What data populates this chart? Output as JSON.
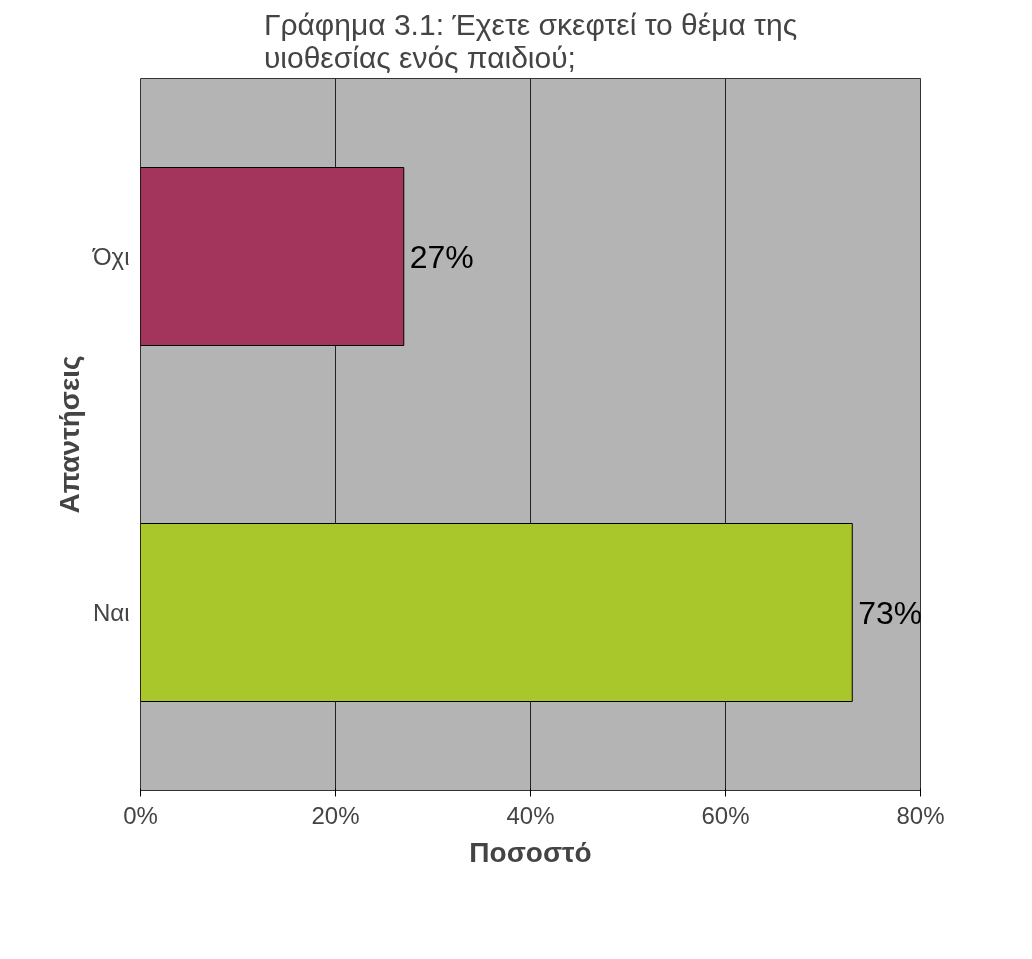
{
  "chart_data": {
    "type": "bar",
    "orientation": "horizontal",
    "title": "Γράφημα 3.1: Έχετε σκεφτεί το θέμα της\nυιοθεσίας ενός παιδιού;",
    "xlabel": "Ποσοστό",
    "ylabel": "Απαντήσεις",
    "categories": [
      "Όχι",
      "Ναι"
    ],
    "values": [
      27,
      73
    ],
    "colors": [
      "#a3355c",
      "#a9c62a"
    ],
    "value_labels": [
      "27%",
      "73%"
    ],
    "xlim": [
      0,
      80
    ],
    "xticks": [
      {
        "value": 0,
        "label": "0%"
      },
      {
        "value": 20,
        "label": "20%"
      },
      {
        "value": 40,
        "label": "40%"
      },
      {
        "value": 60,
        "label": "60%"
      },
      {
        "value": 80,
        "label": "80%"
      }
    ],
    "grid": "x"
  }
}
